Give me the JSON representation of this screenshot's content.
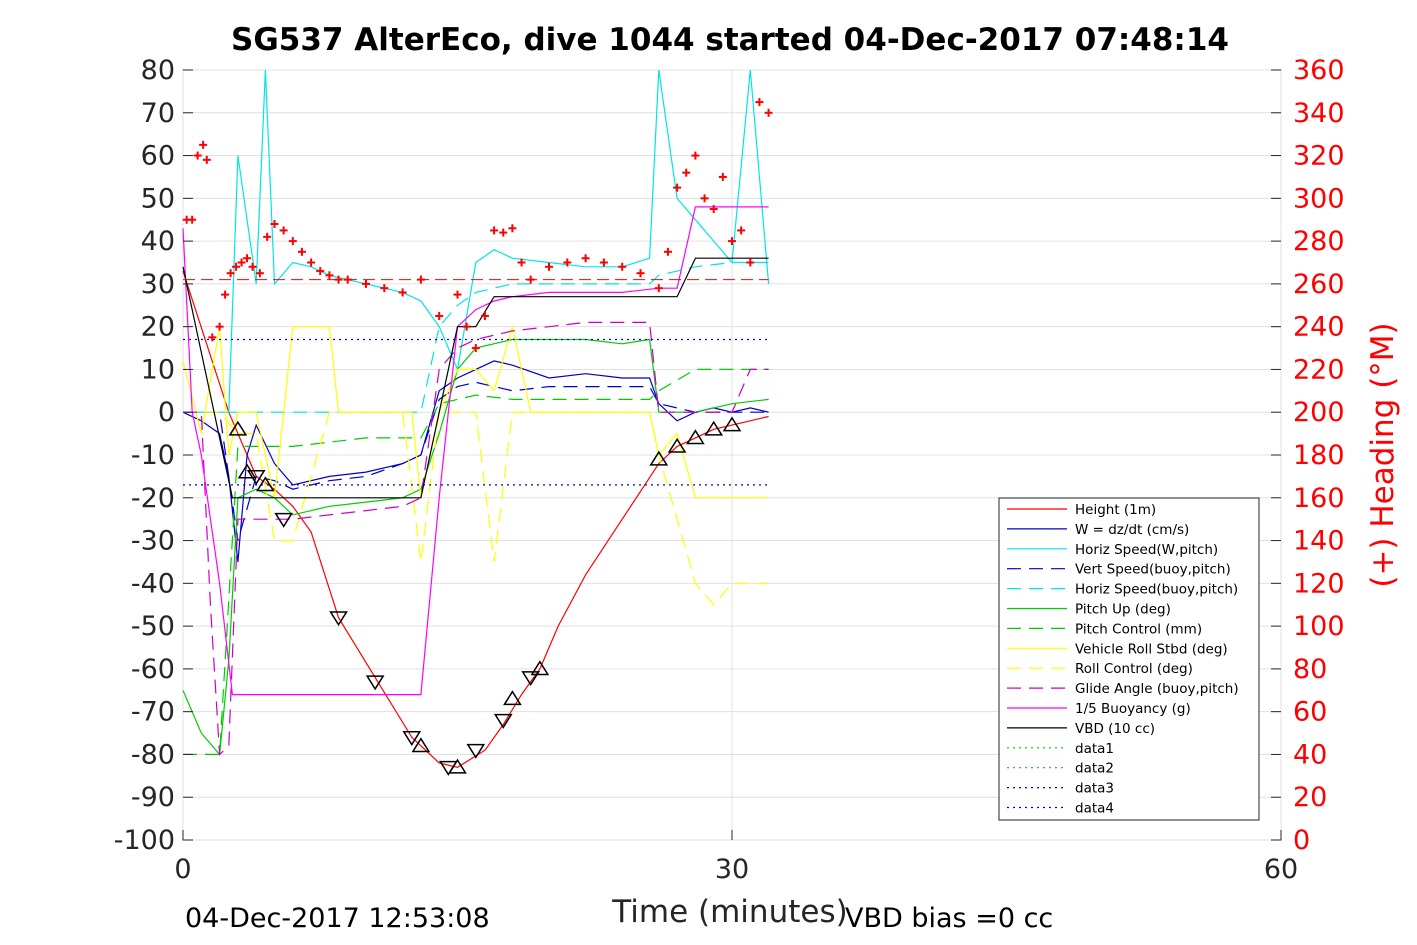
{
  "chart_data": {
    "type": "line",
    "title": "SG537 AlterEco, dive 1044 started 04-Dec-2017 07:48:14",
    "xlabel": "Time (minutes)",
    "ylabel_right": "(+) Heading (°M)",
    "footer_left": "04-Dec-2017 12:53:08",
    "footer_right": "VBD bias =0 cc",
    "xlim": [
      0,
      60
    ],
    "ylim_left": [
      -100,
      80
    ],
    "ylim_right": [
      0,
      360
    ],
    "xticks": [
      "0",
      "30",
      "60"
    ],
    "yticks_left": [
      "80",
      "70",
      "60",
      "50",
      "40",
      "30",
      "20",
      "10",
      "0",
      "-10",
      "-20",
      "-30",
      "-40",
      "-50",
      "-60",
      "-70",
      "-80",
      "-90",
      "-100"
    ],
    "yticks_right": [
      "360",
      "340",
      "320",
      "300",
      "280",
      "260",
      "240",
      "220",
      "200",
      "180",
      "160",
      "140",
      "120",
      "100",
      "80",
      "60",
      "40",
      "20",
      "0"
    ],
    "grid": true,
    "legend_position": "lower-right",
    "colors": {
      "height": "#ff0000",
      "w": "#0000cc",
      "horiz_w": "#00e5e5",
      "vert_buoy": "#0000cc",
      "horiz_buoy": "#00e5e5",
      "pitch": "#00cc00",
      "pitch_ctrl": "#00cc00",
      "roll": "#ffff00",
      "roll_ctrl": "#ffff00",
      "glide": "#cc00cc",
      "buoy": "#ff00ff",
      "vbd": "#000000",
      "heading": "#ff0000",
      "right_axis": "#ff0000"
    },
    "series": [
      {
        "name": "Height (1m)",
        "style": "solid",
        "color": "#ff0000",
        "x": [
          0,
          2.5,
          4,
          5,
          6,
          7,
          8.5,
          10.5,
          12.5,
          14,
          15,
          16.5,
          17.5,
          18.5,
          19.5,
          20.5,
          22,
          24,
          26,
          27,
          28,
          29,
          30,
          31,
          32
        ],
        "y": [
          33,
          0,
          -15,
          -18,
          -22,
          -28,
          -48,
          -62,
          -76,
          -82,
          -83,
          -79,
          -73,
          -66,
          -60,
          -50,
          -38,
          -25,
          -12,
          -8,
          -6,
          -4,
          -3,
          -2,
          -1
        ]
      },
      {
        "name": "W = dz/dt (cm/s)",
        "style": "solid",
        "color": "#0000cc",
        "x": [
          0,
          1,
          2,
          2.5,
          3,
          3.5,
          4,
          5,
          6,
          8,
          10,
          12,
          13,
          14,
          15,
          16,
          17,
          18,
          20,
          22,
          24,
          25.5,
          26,
          27,
          28,
          29,
          30,
          31,
          32
        ],
        "y": [
          0,
          -2,
          -5,
          -15,
          -35,
          -10,
          -3,
          -12,
          -17,
          -15,
          -14,
          -12,
          -10,
          5,
          8,
          10,
          12,
          11,
          8,
          9,
          8,
          8,
          2,
          -2,
          0,
          1,
          0,
          1,
          0
        ]
      },
      {
        "name": "Horiz Speed(W,pitch)",
        "style": "solid",
        "color": "#00e5e5",
        "x": [
          0,
          2,
          2.5,
          3,
          4,
          4.5,
          5,
          6,
          7,
          8,
          10,
          12,
          13,
          14,
          15,
          16,
          17,
          18,
          20,
          22,
          24,
          25.5,
          26,
          27,
          28,
          29,
          30,
          31,
          32
        ],
        "y": [
          0,
          0,
          0,
          60,
          30,
          80,
          30,
          35,
          34,
          32,
          30,
          28,
          26,
          20,
          10,
          35,
          38,
          36,
          35,
          34,
          34,
          36,
          80,
          50,
          45,
          40,
          35,
          80,
          30
        ]
      },
      {
        "name": "Vert Speed(buoy,pitch)",
        "style": "dashed",
        "color": "#0000cc",
        "x": [
          0,
          2,
          3,
          4,
          5,
          6,
          8,
          10,
          12,
          13,
          14,
          15,
          16,
          18,
          20,
          22,
          24,
          25.5,
          26,
          28,
          30,
          32
        ],
        "y": [
          0,
          0,
          -30,
          -15,
          -16,
          -18,
          -16,
          -15,
          -12,
          -10,
          3,
          6,
          7,
          5,
          6,
          6,
          6,
          6,
          2,
          0,
          0,
          0
        ]
      },
      {
        "name": "Horiz Speed(buoy,pitch)",
        "style": "dashed",
        "color": "#00e5e5",
        "x": [
          0,
          2,
          3,
          4,
          5,
          6,
          8,
          10,
          12,
          13,
          14,
          15,
          16,
          18,
          20,
          22,
          24,
          25.5,
          26,
          28,
          30,
          32
        ],
        "y": [
          0,
          0,
          0,
          0,
          0,
          0,
          0,
          0,
          0,
          0,
          20,
          25,
          28,
          30,
          30,
          30,
          30,
          30,
          32,
          34,
          35,
          35
        ]
      },
      {
        "name": "Pitch Up (deg)",
        "style": "solid",
        "color": "#00cc00",
        "x": [
          0,
          1,
          2,
          2.5,
          3,
          4,
          5,
          6,
          8,
          10,
          12,
          13,
          14,
          15,
          16,
          18,
          20,
          22,
          24,
          25.5,
          26,
          28,
          30,
          32
        ],
        "y": [
          -65,
          -75,
          -80,
          -58,
          -20,
          -18,
          -20,
          -24,
          -22,
          -21,
          -20,
          -18,
          -5,
          10,
          15,
          17,
          17,
          17,
          16,
          17,
          0,
          0,
          2,
          3
        ]
      },
      {
        "name": "Pitch Control (mm)",
        "style": "dashed",
        "color": "#00cc00",
        "x": [
          0,
          2,
          3,
          4,
          5,
          6,
          8,
          10,
          12,
          13,
          14,
          15,
          16,
          18,
          20,
          22,
          24,
          25.5,
          26,
          28,
          30,
          32
        ],
        "y": [
          -80,
          -80,
          -8,
          -8,
          -8,
          -8,
          -7,
          -6,
          -6,
          -6,
          2,
          3,
          4,
          3,
          3,
          3,
          3,
          3,
          5,
          10,
          10,
          10
        ]
      },
      {
        "name": "Vehicle Roll Stbd (deg)",
        "style": "solid",
        "color": "#ffff00",
        "x": [
          0,
          1,
          2,
          2.5,
          3,
          4,
          5,
          6,
          7,
          8,
          8.5,
          10,
          12,
          12.5,
          13,
          14,
          15,
          16,
          17,
          18,
          19,
          20,
          22,
          24,
          25.5,
          26,
          27,
          28,
          29,
          30,
          31,
          32
        ],
        "y": [
          12,
          -5,
          20,
          -10,
          0,
          0,
          -20,
          20,
          20,
          20,
          0,
          0,
          0,
          0,
          -20,
          0,
          10,
          10,
          5,
          20,
          0,
          0,
          0,
          0,
          0,
          -10,
          -5,
          -20,
          -20,
          -20,
          -20,
          -20
        ]
      },
      {
        "name": "Roll Control (deg)",
        "style": "dashed",
        "color": "#ffff00",
        "x": [
          0,
          2,
          3,
          4,
          5,
          6,
          8,
          10,
          12,
          13,
          14,
          16,
          17,
          18,
          20,
          22,
          24,
          25.5,
          26,
          28,
          29,
          30,
          31,
          32
        ],
        "y": [
          0,
          0,
          -5,
          -5,
          -30,
          -30,
          0,
          0,
          0,
          -35,
          0,
          0,
          -35,
          0,
          0,
          0,
          0,
          0,
          -10,
          -40,
          -45,
          -40,
          -40,
          -40
        ]
      },
      {
        "name": "Glide Angle (buoy,pitch)",
        "style": "dashed",
        "color": "#cc00cc",
        "x": [
          0,
          1,
          1.5,
          2,
          2.5,
          3,
          4,
          5,
          6,
          8,
          10,
          12,
          13,
          14,
          15,
          16,
          18,
          20,
          22,
          24,
          25.5,
          26,
          28,
          30,
          31,
          32
        ],
        "y": [
          0,
          0,
          -45,
          -80,
          -78,
          -25,
          -25,
          -25,
          -25,
          -24,
          -23,
          -22,
          -20,
          10,
          15,
          17,
          19,
          20,
          21,
          21,
          21,
          0,
          0,
          0,
          10,
          10
        ]
      },
      {
        "name": "1/5 Buoyancy (g)",
        "style": "solid",
        "color": "#ff00ff",
        "x": [
          0,
          0.5,
          1,
          2,
          2.7,
          3,
          5,
          8,
          10,
          12,
          13,
          14,
          15,
          16,
          17,
          18,
          20,
          22,
          24,
          26,
          27,
          28,
          29,
          30,
          31,
          32
        ],
        "y": [
          43,
          0,
          -10,
          -40,
          -66,
          -66,
          -66,
          -66,
          -66,
          -66,
          -66,
          -20,
          20,
          24,
          26,
          27,
          28,
          28,
          28,
          29,
          29,
          48,
          48,
          48,
          48,
          48
        ]
      },
      {
        "name": "VBD (10 cc)",
        "style": "solid",
        "color": "#000000",
        "x": [
          0,
          2.7,
          3,
          5,
          8,
          10,
          12,
          13,
          14,
          15,
          16,
          17,
          18,
          20,
          22,
          24,
          26,
          27,
          28,
          29,
          30,
          31,
          32
        ],
        "y": [
          34,
          -20,
          -20,
          -20,
          -20,
          -20,
          -20,
          -20,
          0,
          20,
          20,
          27,
          27,
          27,
          27,
          27,
          27,
          27,
          36,
          36,
          36,
          36,
          36
        ]
      },
      {
        "name": "data1",
        "style": "dotted",
        "color": "#00cc00",
        "x": [],
        "y": []
      },
      {
        "name": "data2",
        "style": "dotted",
        "color": "#00cc00",
        "x": [],
        "y": []
      },
      {
        "name": "data3",
        "style": "dotted",
        "color": "#0000cc",
        "x": [
          0,
          32
        ],
        "y": [
          17,
          17
        ]
      },
      {
        "name": "data4",
        "style": "dotted",
        "color": "#0000cc",
        "x": [
          0,
          32
        ],
        "y": [
          -17,
          -17
        ]
      }
    ],
    "heading_points": {
      "axis": "right",
      "x": [
        0.2,
        0.5,
        0.8,
        1.1,
        1.3,
        1.6,
        2.0,
        2.3,
        2.6,
        2.9,
        3.2,
        3.5,
        3.8,
        4.2,
        4.6,
        5.0,
        5.5,
        6.0,
        6.5,
        7.0,
        7.5,
        8.0,
        8.5,
        9.0,
        10.0,
        11.0,
        12.0,
        13.0,
        14.0,
        15.0,
        15.5,
        16.0,
        16.5,
        17.0,
        17.5,
        18.0,
        18.5,
        19.0,
        20.0,
        21.0,
        22.0,
        23.0,
        24.0,
        25.0,
        26.0,
        26.5,
        27.0,
        27.5,
        28.0,
        28.5,
        29.0,
        29.5,
        30.0,
        30.5,
        31.0,
        31.5,
        32.0
      ],
      "y": [
        290,
        290,
        320,
        325,
        318,
        235,
        240,
        255,
        265,
        268,
        270,
        272,
        268,
        265,
        282,
        288,
        285,
        280,
        275,
        270,
        266,
        264,
        262,
        262,
        260,
        258,
        256,
        262,
        245,
        255,
        240,
        230,
        245,
        285,
        284,
        286,
        270,
        262,
        268,
        270,
        272,
        270,
        268,
        265,
        258,
        275,
        305,
        312,
        320,
        300,
        295,
        310,
        280,
        285,
        270,
        345,
        340
      ],
      "reference_heading": 262
    },
    "markers": {
      "triangles_down": [
        [
          4,
          -15
        ],
        [
          5.5,
          -25
        ],
        [
          8.5,
          -48
        ],
        [
          10.5,
          -63
        ],
        [
          12.5,
          -76
        ],
        [
          14.5,
          -83
        ],
        [
          16,
          -79
        ],
        [
          17.5,
          -72
        ],
        [
          19,
          -62
        ]
      ],
      "triangles_up": [
        [
          3,
          -4
        ],
        [
          3.5,
          -14
        ],
        [
          4.5,
          -17
        ],
        [
          13,
          -78
        ],
        [
          15,
          -83
        ],
        [
          18,
          -67
        ],
        [
          19.5,
          -60
        ],
        [
          26,
          -11
        ],
        [
          27,
          -8
        ],
        [
          28,
          -6
        ],
        [
          29,
          -4
        ],
        [
          30,
          -3
        ]
      ]
    }
  }
}
